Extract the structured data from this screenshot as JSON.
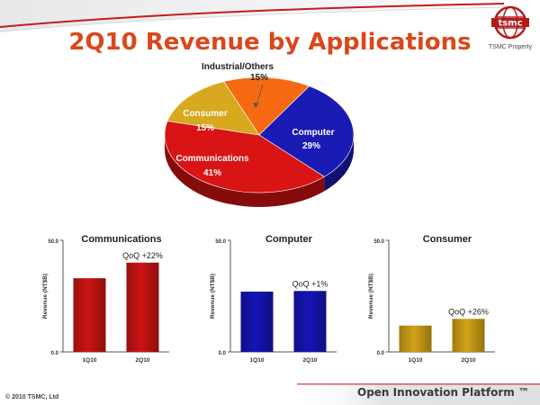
{
  "slide": {
    "title": "2Q10 Revenue by Applications",
    "logo_text": "tsmc",
    "logo_caption": "TSMC Property",
    "footer_left": "© 2010 TSMC, Ltd",
    "footer_right": "Open Innovation Platform ™",
    "colors": {
      "title": "#d9481b",
      "accent_bar": "#c61c1c"
    }
  },
  "chart_data": [
    {
      "type": "pie",
      "title": "",
      "slices": [
        {
          "label": "Industrial/Others",
          "value": 15,
          "value_label": "15%",
          "color": "#f56a10"
        },
        {
          "label": "Computer",
          "value": 29,
          "value_label": "29%",
          "color": "#1a1ab5"
        },
        {
          "label": "Communications",
          "value": 41,
          "value_label": "41%",
          "color": "#d81414"
        },
        {
          "label": "Consumer",
          "value": 15,
          "value_label": "15%",
          "color": "#d8a81e"
        }
      ]
    },
    {
      "type": "bar",
      "title": "Communications",
      "ylabel": "Revenue (NT$B)",
      "ylim": [
        0,
        50
      ],
      "ytick_labels": [
        "0.0",
        "50.0"
      ],
      "categories": [
        "1Q10",
        "2Q10"
      ],
      "values": [
        33,
        40
      ],
      "annotation": "QoQ +22%",
      "color": "#cc1414"
    },
    {
      "type": "bar",
      "title": "Computer",
      "ylabel": "Revenue (NT$B)",
      "ylim": [
        0,
        50
      ],
      "ytick_labels": [
        "0.0",
        "50.0"
      ],
      "categories": [
        "1Q10",
        "2Q10"
      ],
      "values": [
        27,
        27.3
      ],
      "annotation": "QoQ +1%",
      "color": "#1515b8"
    },
    {
      "type": "bar",
      "title": "Consumer",
      "ylabel": "Revenue (NT$B)",
      "ylim": [
        0,
        50
      ],
      "ytick_labels": [
        "0.0",
        "50.0"
      ],
      "categories": [
        "1Q10",
        "2Q10"
      ],
      "values": [
        11.8,
        14.8
      ],
      "annotation": "QoQ +26%",
      "color": "#d2a316"
    }
  ]
}
